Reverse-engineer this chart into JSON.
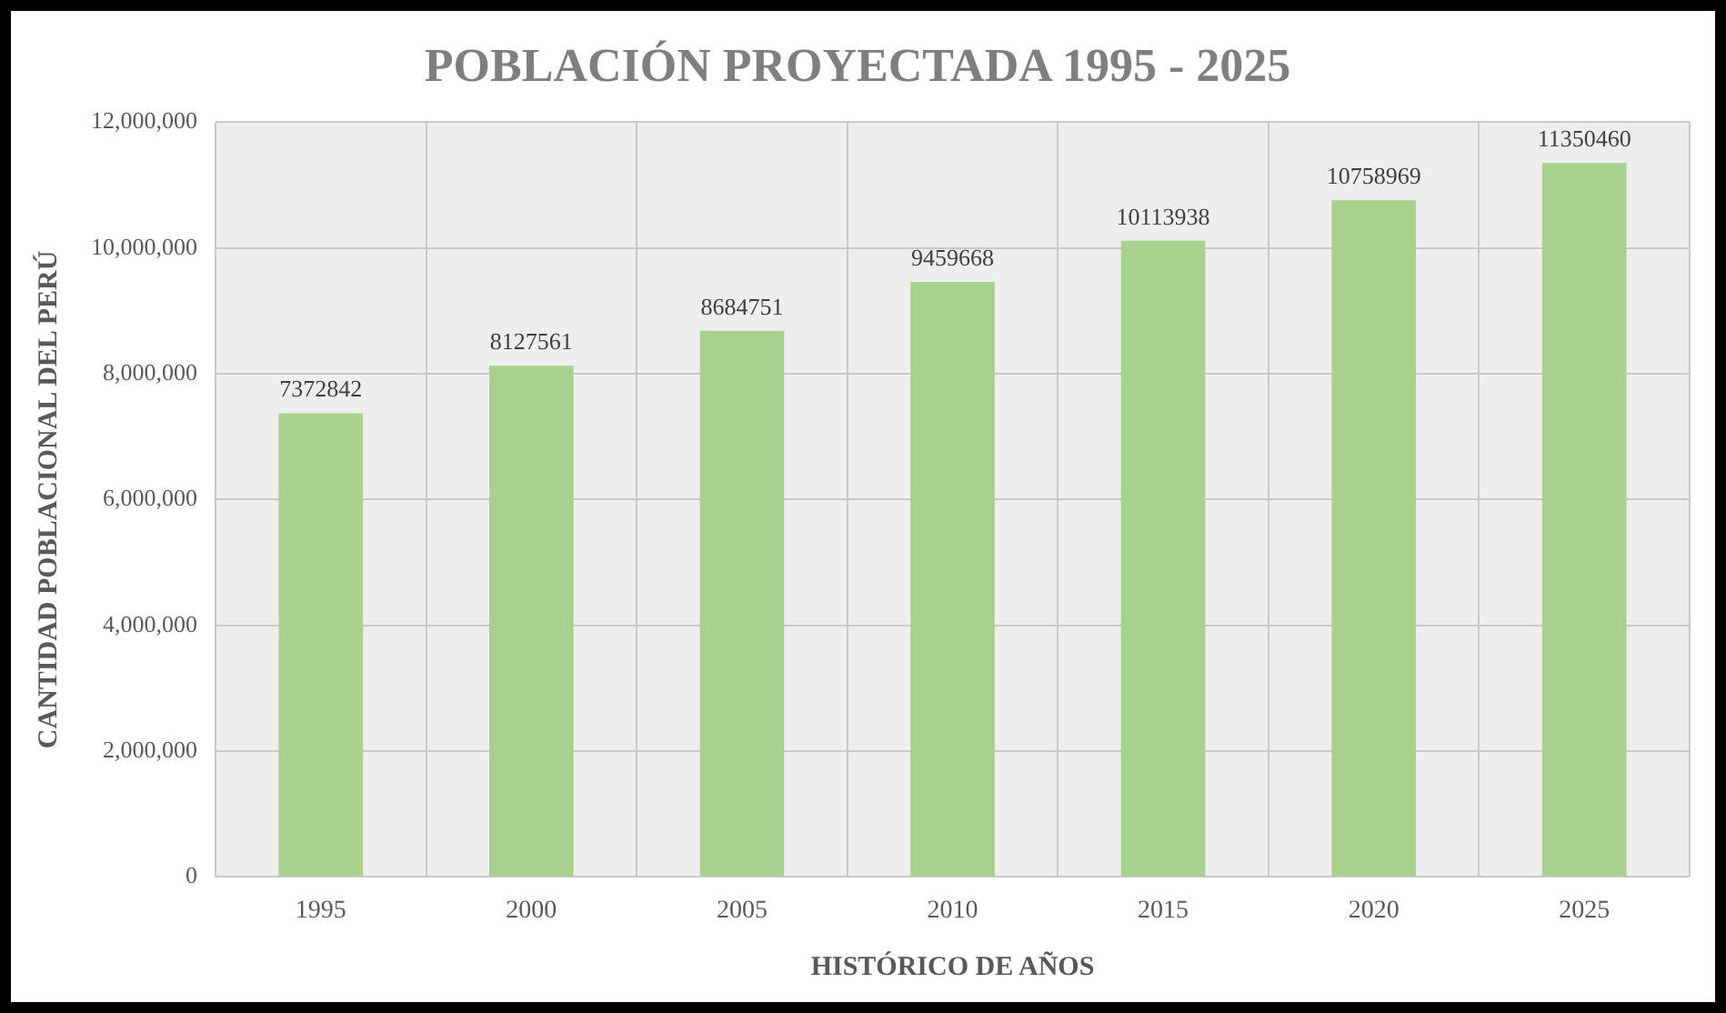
{
  "chart_data": {
    "type": "bar",
    "title": "POBLACIÓN PROYECTADA 1995 - 2025",
    "xlabel": "HISTÓRICO DE AÑOS",
    "ylabel": "CANTIDAD POBLACIONAL DEL PERÚ",
    "categories": [
      "1995",
      "2000",
      "2005",
      "2010",
      "2015",
      "2020",
      "2025"
    ],
    "values": [
      7372842,
      8127561,
      8684751,
      9459668,
      10113938,
      10758969,
      11350460
    ],
    "color": "#a9d18e",
    "ylim": [
      0,
      12000000
    ],
    "yticks": [
      {
        "value": 0,
        "label": "0"
      },
      {
        "value": 2000000,
        "label": "2,000,000"
      },
      {
        "value": 4000000,
        "label": "4,000,000"
      },
      {
        "value": 6000000,
        "label": "6,000,000"
      },
      {
        "value": 8000000,
        "label": "8,000,000"
      },
      {
        "value": 10000000,
        "label": "10,000,000"
      },
      {
        "value": 12000000,
        "label": "12,000,000"
      }
    ],
    "grid": true,
    "data_labels": true
  }
}
